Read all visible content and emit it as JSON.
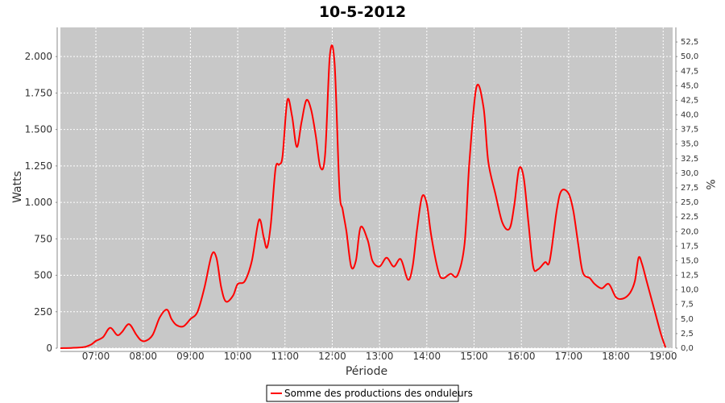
{
  "chart_data": {
    "type": "line",
    "title": "10-5-2012",
    "xlabel": "Période",
    "ylabel": "Watts",
    "y2label": "%",
    "xlim": [
      6.25,
      19.2
    ],
    "ylim": [
      0,
      2200
    ],
    "y2lim": [
      0,
      55
    ],
    "x_ticks": [
      {
        "v": 7,
        "label": "07:00"
      },
      {
        "v": 8,
        "label": "08:00"
      },
      {
        "v": 9,
        "label": "09:00"
      },
      {
        "v": 10,
        "label": "10:00"
      },
      {
        "v": 11,
        "label": "11:00"
      },
      {
        "v": 12,
        "label": "12:00"
      },
      {
        "v": 13,
        "label": "13:00"
      },
      {
        "v": 14,
        "label": "14:00"
      },
      {
        "v": 15,
        "label": "15:00"
      },
      {
        "v": 16,
        "label": "16:00"
      },
      {
        "v": 17,
        "label": "17:00"
      },
      {
        "v": 18,
        "label": "18:00"
      },
      {
        "v": 19,
        "label": "19:00"
      }
    ],
    "y_ticks": [
      {
        "v": 0,
        "label": "0"
      },
      {
        "v": 250,
        "label": "250"
      },
      {
        "v": 500,
        "label": "500"
      },
      {
        "v": 750,
        "label": "750"
      },
      {
        "v": 1000,
        "label": "1.000"
      },
      {
        "v": 1250,
        "label": "1.250"
      },
      {
        "v": 1500,
        "label": "1.500"
      },
      {
        "v": 1750,
        "label": "1.750"
      },
      {
        "v": 2000,
        "label": "2.000"
      }
    ],
    "y2_ticks": [
      {
        "v": 0,
        "label": "0,0"
      },
      {
        "v": 2.5,
        "label": "2,5"
      },
      {
        "v": 5,
        "label": "5,0"
      },
      {
        "v": 7.5,
        "label": "7,5"
      },
      {
        "v": 10,
        "label": "10,0"
      },
      {
        "v": 12.5,
        "label": "12,5"
      },
      {
        "v": 15,
        "label": "15,0"
      },
      {
        "v": 17.5,
        "label": "17,5"
      },
      {
        "v": 20,
        "label": "20,0"
      },
      {
        "v": 22.5,
        "label": "22,5"
      },
      {
        "v": 25,
        "label": "25,0"
      },
      {
        "v": 27.5,
        "label": "27,5"
      },
      {
        "v": 30,
        "label": "30,0"
      },
      {
        "v": 32.5,
        "label": "32,5"
      },
      {
        "v": 35,
        "label": "35,0"
      },
      {
        "v": 37.5,
        "label": "37,5"
      },
      {
        "v": 40,
        "label": "40,0"
      },
      {
        "v": 42.5,
        "label": "42,5"
      },
      {
        "v": 45,
        "label": "45,0"
      },
      {
        "v": 47.5,
        "label": "47,5"
      },
      {
        "v": 50,
        "label": "50,0"
      },
      {
        "v": 52.5,
        "label": "52,5"
      }
    ],
    "grid": true,
    "legend_placement": "bottom-center",
    "plot_background": "#c8c8c8",
    "series": [
      {
        "name": "Somme des productions des onduleurs",
        "color": "#ff0000",
        "x": [
          6.25,
          6.5,
          6.75,
          6.9,
          7.0,
          7.15,
          7.3,
          7.45,
          7.55,
          7.7,
          7.85,
          7.95,
          8.05,
          8.2,
          8.35,
          8.5,
          8.6,
          8.7,
          8.85,
          9.0,
          9.15,
          9.3,
          9.45,
          9.55,
          9.65,
          9.75,
          9.9,
          10.0,
          10.15,
          10.3,
          10.45,
          10.55,
          10.62,
          10.7,
          10.8,
          10.88,
          10.95,
          11.05,
          11.15,
          11.25,
          11.35,
          11.45,
          11.55,
          11.65,
          11.75,
          11.85,
          11.95,
          12.05,
          12.15,
          12.22,
          12.3,
          12.4,
          12.5,
          12.6,
          12.75,
          12.85,
          13.0,
          13.15,
          13.3,
          13.45,
          13.6,
          13.7,
          13.8,
          13.9,
          14.0,
          14.1,
          14.25,
          14.35,
          14.5,
          14.65,
          14.8,
          14.9,
          15.05,
          15.2,
          15.3,
          15.45,
          15.6,
          15.75,
          15.85,
          15.95,
          16.05,
          16.15,
          16.25,
          16.35,
          16.5,
          16.6,
          16.75,
          16.85,
          17.0,
          17.1,
          17.2,
          17.3,
          17.45,
          17.55,
          17.7,
          17.85,
          18.0,
          18.15,
          18.3,
          18.4,
          18.48,
          18.55,
          18.65,
          18.8,
          18.95,
          19.05
        ],
        "y": [
          0,
          2,
          8,
          25,
          50,
          75,
          140,
          90,
          110,
          165,
          95,
          55,
          50,
          90,
          210,
          265,
          200,
          160,
          150,
          200,
          250,
          420,
          640,
          620,
          420,
          320,
          360,
          440,
          460,
          600,
          880,
          760,
          690,
          850,
          1230,
          1260,
          1320,
          1700,
          1590,
          1380,
          1550,
          1700,
          1640,
          1460,
          1240,
          1330,
          2010,
          1950,
          1100,
          950,
          800,
          560,
          600,
          830,
          740,
          600,
          560,
          620,
          560,
          610,
          470,
          560,
          830,
          1040,
          990,
          760,
          520,
          480,
          510,
          500,
          720,
          1270,
          1790,
          1650,
          1280,
          1060,
          860,
          820,
          980,
          1230,
          1170,
          860,
          560,
          540,
          590,
          600,
          950,
          1080,
          1060,
          940,
          720,
          520,
          480,
          440,
          410,
          440,
          350,
          340,
          380,
          460,
          620,
          580,
          460,
          280,
          100,
          5
        ]
      }
    ]
  }
}
